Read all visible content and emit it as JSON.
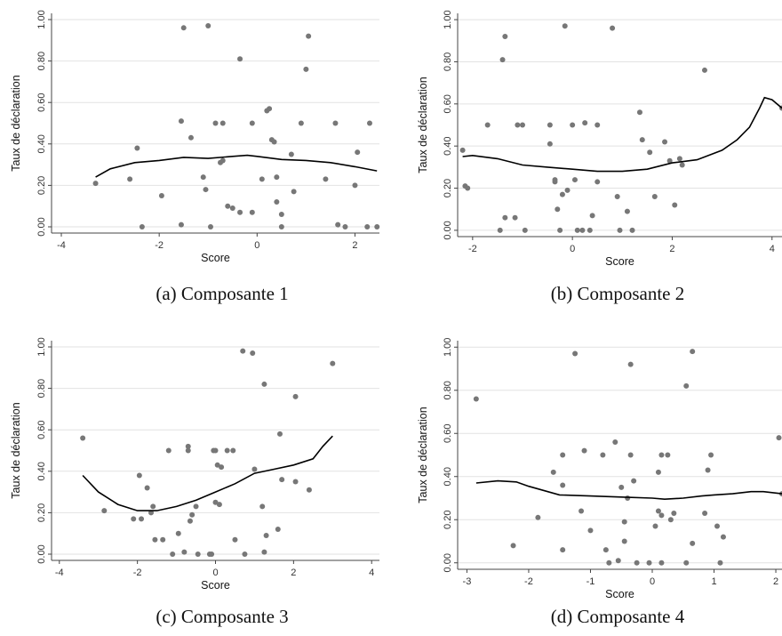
{
  "colors": {
    "points": "#777777",
    "curve": "#000000",
    "grid": "#e2e2e2",
    "axis": "#444444"
  },
  "chart_data": [
    {
      "type": "scatter",
      "caption": "(a)   Composante 1",
      "xlabel": "Score",
      "ylabel": "Taux de déclaration",
      "xlim": [
        -4.2,
        2.5
      ],
      "ylim": [
        -0.03,
        1.03
      ],
      "xticks": [
        {
          "v": -4,
          "label": "-4"
        },
        {
          "v": -2,
          "label": "-2"
        },
        {
          "v": 0,
          "label": "0"
        },
        {
          "v": 2,
          "label": "2"
        }
      ],
      "yticks": [
        {
          "v": 0,
          "label": "0.00"
        },
        {
          "v": 0.2,
          "label": "0.20"
        },
        {
          "v": 0.4,
          "label": "0.40"
        },
        {
          "v": 0.6,
          "label": "0.60"
        },
        {
          "v": 0.8,
          "label": "0.80"
        },
        {
          "v": 1.0,
          "label": "1.00"
        }
      ],
      "grid": true,
      "points": [
        [
          -3.3,
          0.21
        ],
        [
          -2.6,
          0.23
        ],
        [
          -2.45,
          0.38
        ],
        [
          -2.35,
          0.0
        ],
        [
          -1.95,
          0.15
        ],
        [
          -1.55,
          0.51
        ],
        [
          -1.5,
          0.96
        ],
        [
          -1.55,
          0.01
        ],
        [
          -1.35,
          0.43
        ],
        [
          -1.1,
          0.24
        ],
        [
          -1.05,
          0.18
        ],
        [
          -1.0,
          0.97
        ],
        [
          -0.95,
          0.0
        ],
        [
          -0.85,
          0.5
        ],
        [
          -0.75,
          0.31
        ],
        [
          -0.7,
          0.5
        ],
        [
          -0.7,
          0.32
        ],
        [
          -0.6,
          0.1
        ],
        [
          -0.5,
          0.09
        ],
        [
          -0.35,
          0.81
        ],
        [
          -0.35,
          0.07
        ],
        [
          -0.1,
          0.5
        ],
        [
          0.1,
          0.23
        ],
        [
          0.2,
          0.56
        ],
        [
          0.25,
          0.57
        ],
        [
          0.3,
          0.42
        ],
        [
          0.35,
          0.41
        ],
        [
          0.4,
          0.24
        ],
        [
          0.4,
          0.12
        ],
        [
          0.5,
          0.06
        ],
        [
          0.5,
          0.0
        ],
        [
          0.7,
          0.35
        ],
        [
          0.75,
          0.17
        ],
        [
          0.9,
          0.5
        ],
        [
          1.0,
          0.76
        ],
        [
          1.05,
          0.92
        ],
        [
          1.4,
          0.23
        ],
        [
          1.6,
          0.5
        ],
        [
          1.65,
          0.01
        ],
        [
          1.8,
          0.0
        ],
        [
          2.0,
          0.2
        ],
        [
          2.05,
          0.36
        ],
        [
          2.3,
          0.5
        ],
        [
          2.25,
          0.0
        ],
        [
          2.45,
          0.0
        ],
        [
          -0.1,
          0.07
        ]
      ],
      "curve": [
        [
          -3.3,
          0.24
        ],
        [
          -3.0,
          0.28
        ],
        [
          -2.5,
          0.31
        ],
        [
          -2.0,
          0.32
        ],
        [
          -1.5,
          0.335
        ],
        [
          -1.0,
          0.33
        ],
        [
          -0.5,
          0.34
        ],
        [
          -0.2,
          0.345
        ],
        [
          0.0,
          0.34
        ],
        [
          0.5,
          0.325
        ],
        [
          1.0,
          0.32
        ],
        [
          1.5,
          0.31
        ],
        [
          2.0,
          0.29
        ],
        [
          2.45,
          0.27
        ]
      ]
    },
    {
      "type": "scatter",
      "caption": "(b)   Composante 2",
      "xlabel": "Score",
      "ylabel": "Taux de déclaration",
      "xlim": [
        -2.3,
        4.2
      ],
      "ylim": [
        -0.03,
        1.03
      ],
      "xticks": [
        {
          "v": -2,
          "label": "-2"
        },
        {
          "v": 0,
          "label": "0"
        },
        {
          "v": 2,
          "label": "2"
        },
        {
          "v": 4,
          "label": "4"
        }
      ],
      "yticks": [
        {
          "v": 0,
          "label": "0.00"
        },
        {
          "v": 0.2,
          "label": "0.20"
        },
        {
          "v": 0.4,
          "label": "0.40"
        },
        {
          "v": 0.6,
          "label": "0.60"
        },
        {
          "v": 0.8,
          "label": "0.80"
        },
        {
          "v": 1.0,
          "label": "1.00"
        }
      ],
      "grid": true,
      "points": [
        [
          -2.2,
          0.38
        ],
        [
          -2.15,
          0.21
        ],
        [
          -2.1,
          0.2
        ],
        [
          -1.7,
          0.5
        ],
        [
          -1.45,
          0.0
        ],
        [
          -1.35,
          0.92
        ],
        [
          -1.4,
          0.81
        ],
        [
          -1.35,
          0.06
        ],
        [
          -1.15,
          0.06
        ],
        [
          -1.1,
          0.5
        ],
        [
          -1.0,
          0.5
        ],
        [
          -0.95,
          0.0
        ],
        [
          -0.45,
          0.41
        ],
        [
          -0.45,
          0.5
        ],
        [
          -0.35,
          0.24
        ],
        [
          -0.35,
          0.23
        ],
        [
          -0.3,
          0.1
        ],
        [
          -0.25,
          0.0
        ],
        [
          -0.2,
          0.17
        ],
        [
          -0.15,
          0.97
        ],
        [
          -0.1,
          0.19
        ],
        [
          0.0,
          0.5
        ],
        [
          0.05,
          0.24
        ],
        [
          0.1,
          0.0
        ],
        [
          0.2,
          0.0
        ],
        [
          0.25,
          0.51
        ],
        [
          0.35,
          0.0
        ],
        [
          0.4,
          0.07
        ],
        [
          0.5,
          0.5
        ],
        [
          0.5,
          0.23
        ],
        [
          0.8,
          0.96
        ],
        [
          0.9,
          0.16
        ],
        [
          0.95,
          0.0
        ],
        [
          1.1,
          0.09
        ],
        [
          1.2,
          0.0
        ],
        [
          1.35,
          0.56
        ],
        [
          1.4,
          0.43
        ],
        [
          1.55,
          0.37
        ],
        [
          1.65,
          0.16
        ],
        [
          1.85,
          0.42
        ],
        [
          1.95,
          0.33
        ],
        [
          2.05,
          0.12
        ],
        [
          2.15,
          0.34
        ],
        [
          2.2,
          0.31
        ],
        [
          2.65,
          0.76
        ],
        [
          4.2,
          0.58
        ]
      ],
      "curve": [
        [
          -2.2,
          0.35
        ],
        [
          -2.0,
          0.355
        ],
        [
          -1.5,
          0.34
        ],
        [
          -1.0,
          0.31
        ],
        [
          -0.5,
          0.3
        ],
        [
          0.0,
          0.29
        ],
        [
          0.5,
          0.28
        ],
        [
          1.0,
          0.28
        ],
        [
          1.5,
          0.29
        ],
        [
          2.0,
          0.32
        ],
        [
          2.5,
          0.335
        ],
        [
          3.0,
          0.38
        ],
        [
          3.3,
          0.43
        ],
        [
          3.55,
          0.49
        ],
        [
          3.75,
          0.58
        ],
        [
          3.85,
          0.63
        ],
        [
          4.0,
          0.62
        ],
        [
          4.2,
          0.58
        ]
      ]
    },
    {
      "type": "scatter",
      "caption": "(c)   Composante 3",
      "xlabel": "Score",
      "ylabel": "Taux de déclaration",
      "xlim": [
        -4.2,
        4.2
      ],
      "ylim": [
        -0.03,
        1.03
      ],
      "xticks": [
        {
          "v": -4,
          "label": "-4"
        },
        {
          "v": -2,
          "label": "-2"
        },
        {
          "v": 0,
          "label": "0"
        },
        {
          "v": 2,
          "label": "2"
        },
        {
          "v": 4,
          "label": "4"
        }
      ],
      "yticks": [
        {
          "v": 0,
          "label": "0.00"
        },
        {
          "v": 0.2,
          "label": "0.20"
        },
        {
          "v": 0.4,
          "label": "0.40"
        },
        {
          "v": 0.6,
          "label": "0.60"
        },
        {
          "v": 0.8,
          "label": "0.80"
        },
        {
          "v": 1.0,
          "label": "1.00"
        }
      ],
      "grid": true,
      "points": [
        [
          -3.4,
          0.56
        ],
        [
          -2.85,
          0.21
        ],
        [
          -2.1,
          0.17
        ],
        [
          -1.95,
          0.38
        ],
        [
          -1.9,
          0.17
        ],
        [
          -1.75,
          0.32
        ],
        [
          -1.65,
          0.2
        ],
        [
          -1.6,
          0.23
        ],
        [
          -1.55,
          0.07
        ],
        [
          -1.35,
          0.07
        ],
        [
          -1.2,
          0.5
        ],
        [
          -1.1,
          0.0
        ],
        [
          -0.95,
          0.1
        ],
        [
          -0.8,
          0.01
        ],
        [
          -0.7,
          0.52
        ],
        [
          -0.7,
          0.5
        ],
        [
          -0.65,
          0.16
        ],
        [
          -0.6,
          0.19
        ],
        [
          -0.5,
          0.23
        ],
        [
          -0.45,
          0.0
        ],
        [
          -0.15,
          0.0
        ],
        [
          -0.1,
          0.0
        ],
        [
          -0.05,
          0.5
        ],
        [
          0.0,
          0.5
        ],
        [
          0.0,
          0.25
        ],
        [
          0.05,
          0.43
        ],
        [
          0.1,
          0.24
        ],
        [
          0.15,
          0.42
        ],
        [
          0.3,
          0.5
        ],
        [
          0.45,
          0.5
        ],
        [
          0.5,
          0.07
        ],
        [
          0.7,
          0.98
        ],
        [
          0.75,
          0.0
        ],
        [
          0.95,
          0.97
        ],
        [
          1.0,
          0.41
        ],
        [
          1.2,
          0.23
        ],
        [
          1.25,
          0.82
        ],
        [
          1.3,
          0.09
        ],
        [
          1.25,
          0.01
        ],
        [
          1.6,
          0.12
        ],
        [
          1.65,
          0.58
        ],
        [
          1.7,
          0.36
        ],
        [
          2.05,
          0.76
        ],
        [
          2.05,
          0.35
        ],
        [
          2.4,
          0.31
        ],
        [
          3.0,
          0.92
        ]
      ],
      "curve": [
        [
          -3.4,
          0.38
        ],
        [
          -3.0,
          0.3
        ],
        [
          -2.5,
          0.24
        ],
        [
          -2.0,
          0.21
        ],
        [
          -1.5,
          0.21
        ],
        [
          -1.0,
          0.23
        ],
        [
          -0.5,
          0.26
        ],
        [
          0.0,
          0.3
        ],
        [
          0.5,
          0.34
        ],
        [
          1.0,
          0.39
        ],
        [
          1.5,
          0.41
        ],
        [
          2.0,
          0.43
        ],
        [
          2.5,
          0.46
        ],
        [
          2.75,
          0.52
        ],
        [
          3.0,
          0.57
        ]
      ]
    },
    {
      "type": "scatter",
      "caption": "(d)   Composante 4",
      "xlabel": "Score",
      "ylabel": "Taux de déclaration",
      "xlim": [
        -3.15,
        2.1
      ],
      "ylim": [
        -0.03,
        1.03
      ],
      "xticks": [
        {
          "v": -3,
          "label": "-3"
        },
        {
          "v": -2,
          "label": "-2"
        },
        {
          "v": -1,
          "label": "-1"
        },
        {
          "v": 0,
          "label": "0"
        },
        {
          "v": 1,
          "label": "1"
        },
        {
          "v": 2,
          "label": "2"
        }
      ],
      "yticks": [
        {
          "v": 0,
          "label": "0.00"
        },
        {
          "v": 0.2,
          "label": "0.20"
        },
        {
          "v": 0.4,
          "label": "0.40"
        },
        {
          "v": 0.6,
          "label": "0.60"
        },
        {
          "v": 0.8,
          "label": "0.80"
        },
        {
          "v": 1.0,
          "label": "1.00"
        }
      ],
      "grid": true,
      "points": [
        [
          -2.85,
          0.76
        ],
        [
          -2.25,
          0.08
        ],
        [
          -1.85,
          0.21
        ],
        [
          -1.6,
          0.42
        ],
        [
          -1.45,
          0.5
        ],
        [
          -1.45,
          0.36
        ],
        [
          -1.45,
          0.06
        ],
        [
          -1.25,
          0.97
        ],
        [
          -1.15,
          0.24
        ],
        [
          -1.1,
          0.52
        ],
        [
          -1.0,
          0.15
        ],
        [
          -0.8,
          0.5
        ],
        [
          -0.75,
          0.06
        ],
        [
          -0.7,
          0.0
        ],
        [
          -0.6,
          0.56
        ],
        [
          -0.55,
          0.01
        ],
        [
          -0.5,
          0.35
        ],
        [
          -0.45,
          0.1
        ],
        [
          -0.45,
          0.19
        ],
        [
          -0.35,
          0.92
        ],
        [
          -0.35,
          0.5
        ],
        [
          -0.3,
          0.38
        ],
        [
          -0.25,
          0.0
        ],
        [
          -0.05,
          0.0
        ],
        [
          0.05,
          0.17
        ],
        [
          0.1,
          0.24
        ],
        [
          0.15,
          0.22
        ],
        [
          0.1,
          0.42
        ],
        [
          0.15,
          0.5
        ],
        [
          0.15,
          0.0
        ],
        [
          0.25,
          0.5
        ],
        [
          0.3,
          0.2
        ],
        [
          0.35,
          0.23
        ],
        [
          0.55,
          0.82
        ],
        [
          0.55,
          0.0
        ],
        [
          0.65,
          0.98
        ],
        [
          0.65,
          0.09
        ],
        [
          0.85,
          0.23
        ],
        [
          0.9,
          0.43
        ],
        [
          0.95,
          0.5
        ],
        [
          1.05,
          0.17
        ],
        [
          1.1,
          0.0
        ],
        [
          1.15,
          0.12
        ],
        [
          2.05,
          0.58
        ],
        [
          2.1,
          0.32
        ],
        [
          -0.4,
          0.3
        ]
      ],
      "curve": [
        [
          -2.85,
          0.37
        ],
        [
          -2.5,
          0.38
        ],
        [
          -2.2,
          0.375
        ],
        [
          -2.0,
          0.355
        ],
        [
          -1.5,
          0.315
        ],
        [
          -1.0,
          0.31
        ],
        [
          -0.5,
          0.305
        ],
        [
          0.0,
          0.3
        ],
        [
          0.2,
          0.295
        ],
        [
          0.5,
          0.3
        ],
        [
          0.8,
          0.31
        ],
        [
          1.0,
          0.315
        ],
        [
          1.3,
          0.32
        ],
        [
          1.6,
          0.33
        ],
        [
          1.8,
          0.33
        ],
        [
          2.1,
          0.32
        ]
      ]
    }
  ]
}
